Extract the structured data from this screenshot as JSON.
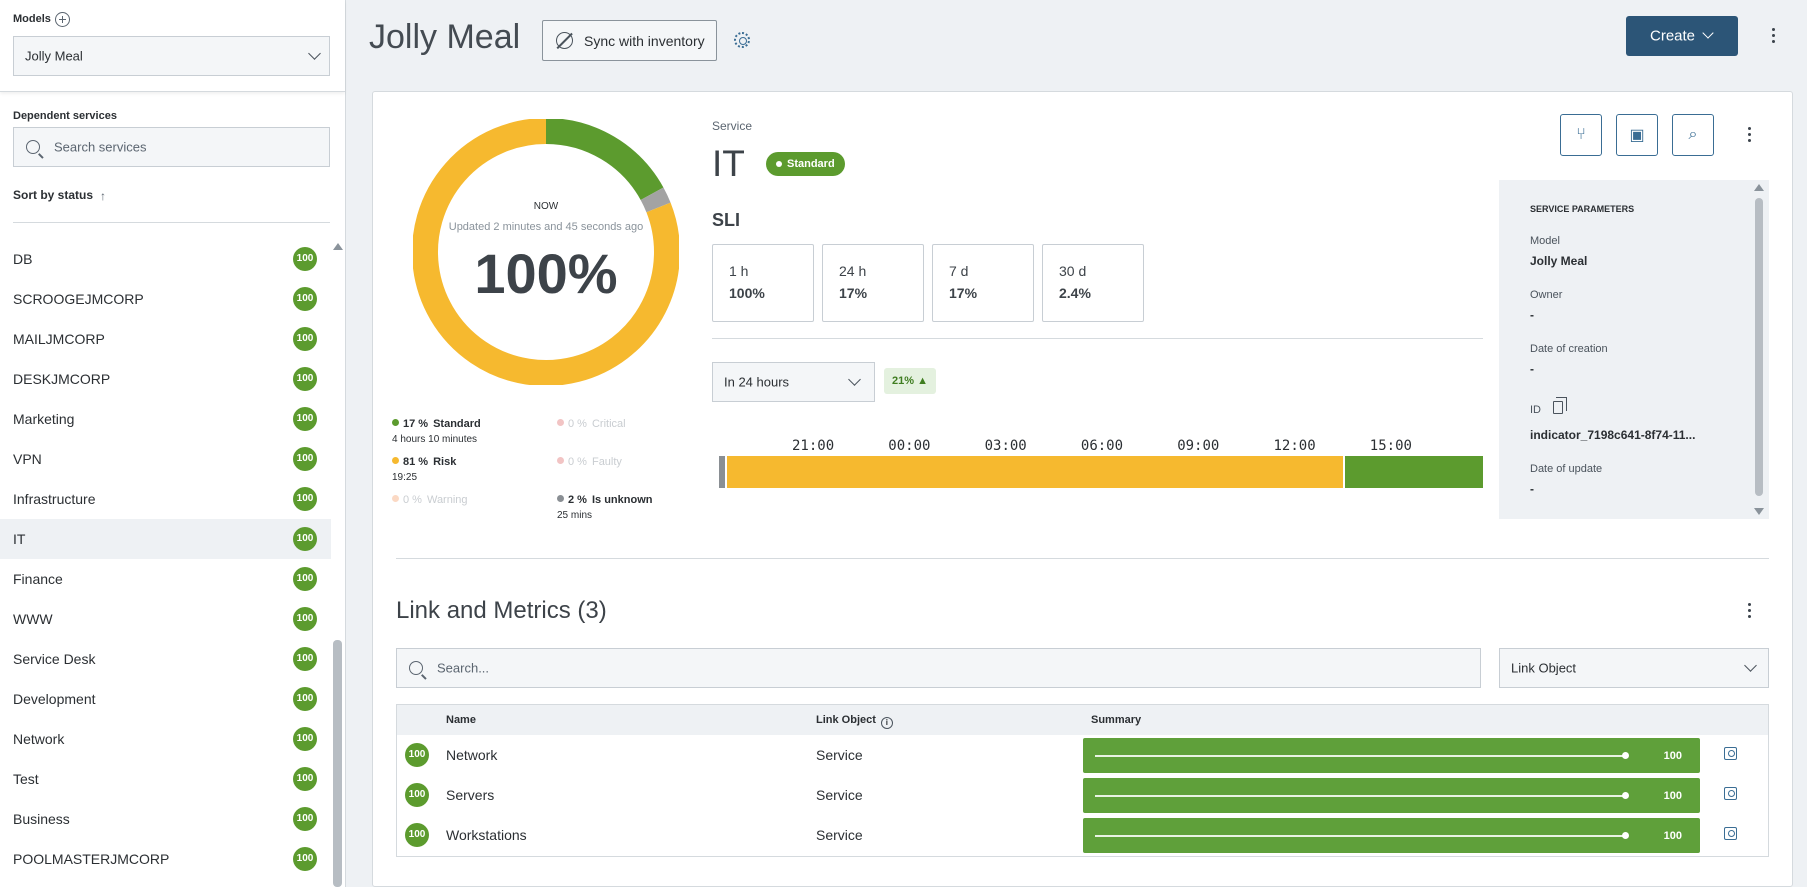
{
  "sidebar": {
    "models_label": "Models",
    "model_select": "Jolly Meal",
    "dependent_label": "Dependent services",
    "search_placeholder": "Search services",
    "sort_label": "Sort by status",
    "items": [
      {
        "name": "DB",
        "score": "100"
      },
      {
        "name": "SCROOGEJMCORP",
        "score": "100"
      },
      {
        "name": "MAILJMCORP",
        "score": "100"
      },
      {
        "name": "DESKJMCORP",
        "score": "100"
      },
      {
        "name": "Marketing",
        "score": "100"
      },
      {
        "name": "VPN",
        "score": "100"
      },
      {
        "name": "Infrastructure",
        "score": "100"
      },
      {
        "name": "IT",
        "score": "100"
      },
      {
        "name": "Finance",
        "score": "100"
      },
      {
        "name": "WWW",
        "score": "100"
      },
      {
        "name": "Service Desk",
        "score": "100"
      },
      {
        "name": "Development",
        "score": "100"
      },
      {
        "name": "Network",
        "score": "100"
      },
      {
        "name": "Test",
        "score": "100"
      },
      {
        "name": "Business",
        "score": "100"
      },
      {
        "name": "POOLMASTERJMCORP",
        "score": "100"
      }
    ],
    "active_item": "IT"
  },
  "header": {
    "title": "Jolly Meal",
    "sync_label": "Sync with inventory",
    "create_label": "Create"
  },
  "donut": {
    "now_label": "NOW",
    "updated_label": "Updated 2 minutes and 45 seconds ago",
    "value_label": "100%",
    "segments": [
      {
        "status": "standard",
        "fraction": 0.17,
        "color": "#5c9b2e"
      },
      {
        "status": "unknown",
        "fraction": 0.02,
        "color": "#a3a3a3"
      },
      {
        "status": "risk",
        "fraction": 0.81,
        "color": "#f6b92f"
      }
    ]
  },
  "legend": {
    "standard": {
      "pct": "17 %",
      "name": "Standard",
      "sub": "4 hours 10 minutes",
      "color": "#5c9b2e"
    },
    "critical": {
      "pct": "0 %",
      "name": "Critical",
      "color": "#f2c4c4"
    },
    "risk": {
      "pct": "81 %",
      "name": "Risk",
      "sub": "19:25",
      "color": "#f6b92f"
    },
    "faulty": {
      "pct": "0 %",
      "name": "Faulty",
      "color": "#f2c4c4"
    },
    "warning": {
      "pct": "0 %",
      "name": "Warning",
      "color": "#fbd9c4"
    },
    "unknown": {
      "pct": "2 %",
      "name": "Is unknown",
      "sub": "25 mins",
      "color": "#8a8f94"
    }
  },
  "service": {
    "label": "Service",
    "name": "IT",
    "status_badge": "Standard",
    "sli_label": "SLI",
    "sli": [
      {
        "period": "1 h",
        "value": "100%"
      },
      {
        "period": "24 h",
        "value": "17%"
      },
      {
        "period": "7 d",
        "value": "17%"
      },
      {
        "period": "30 d",
        "value": "2.4%"
      }
    ],
    "range_select": "In 24 hours",
    "trend": "21% ▲",
    "timeline_ticks": [
      "21:00",
      "00:00",
      "03:00",
      "06:00",
      "09:00",
      "12:00",
      "15:00"
    ],
    "timeline": [
      {
        "status": "unknown",
        "fraction": 0.01,
        "color": "#8a8f94"
      },
      {
        "status": "risk",
        "fraction": 0.81,
        "color": "#f6b92f"
      },
      {
        "status": "standard",
        "fraction": 0.18,
        "color": "#5c9b2e"
      }
    ]
  },
  "params": {
    "heading": "SERVICE PARAMETERS",
    "model_label": "Model",
    "model_value": "Jolly Meal",
    "owner_label": "Owner",
    "owner_value": "-",
    "creation_label": "Date of creation",
    "creation_value": "-",
    "id_label": "ID",
    "id_value": "indicator_7198c641-8f74-11...",
    "update_label": "Date of update",
    "update_value": "-"
  },
  "links": {
    "title": "Link and Metrics (3)",
    "search_placeholder": "Search...",
    "filter_select": "Link Object",
    "columns": {
      "name": "Name",
      "link_object": "Link Object",
      "summary": "Summary"
    },
    "rows": [
      {
        "score": "100",
        "name": "Network",
        "link_object": "Service",
        "summary_value": "100"
      },
      {
        "score": "100",
        "name": "Servers",
        "link_object": "Service",
        "summary_value": "100"
      },
      {
        "score": "100",
        "name": "Workstations",
        "link_object": "Service",
        "summary_value": "100"
      }
    ]
  }
}
